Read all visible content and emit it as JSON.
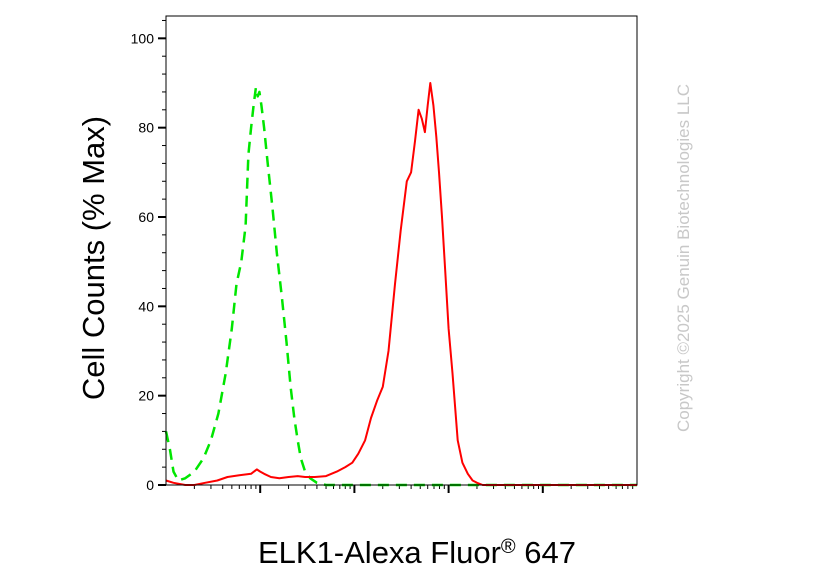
{
  "chart_data": {
    "type": "line",
    "title": "",
    "xlabel": "ELK1-Alexa Fluor",
    "xlabel_superscript": "®",
    "xlabel_suffix": " 647",
    "ylabel": "Cell Counts (% Max)",
    "x_scale": "log",
    "x_decades": [
      1,
      10,
      100,
      1000,
      10000,
      100000
    ],
    "xlim": [
      1,
      100000
    ],
    "ylim": [
      0,
      105
    ],
    "y_ticks": [
      0,
      20,
      40,
      60,
      80,
      100
    ],
    "y_tick_labels": [
      "0",
      "20",
      "40",
      "60",
      "80",
      "100"
    ],
    "grid": false,
    "legend": "none",
    "series": [
      {
        "color": "#00e600",
        "line_style": "dashed",
        "x": [
          1.0,
          1.1,
          1.2,
          1.35,
          1.6,
          2.0,
          2.5,
          3.0,
          3.6,
          4.3,
          5.0,
          5.6,
          6.3,
          7.0,
          7.5,
          8.0,
          8.5,
          9.0,
          9.4,
          9.8,
          10.3,
          11.0,
          12.0,
          13.5,
          15.0,
          17.0,
          19.0,
          21.0,
          23.0,
          25.0,
          27.0,
          30.0,
          34.0,
          40.0,
          50.0,
          70.0,
          100.0,
          300.0,
          1000.0,
          10000.0,
          100000.0
        ],
        "y": [
          12.0,
          8.0,
          3.0,
          1.0,
          1.5,
          3.0,
          6.0,
          10.0,
          16.0,
          25.0,
          35.0,
          45.0,
          50.0,
          58.0,
          74.0,
          80.0,
          85.0,
          89.0,
          87.0,
          88.0,
          85.0,
          80.0,
          72.0,
          62.0,
          52.0,
          42.0,
          32.0,
          22.0,
          15.0,
          10.0,
          6.0,
          3.0,
          1.5,
          0.5,
          0.0,
          0.0,
          0.0,
          0.0,
          0.0,
          0.0,
          0.0
        ]
      },
      {
        "color": "#ff0000",
        "line_style": "solid",
        "x": [
          1.0,
          1.2,
          1.6,
          2.0,
          2.6,
          3.5,
          4.5,
          6.0,
          8.0,
          9.2,
          10.0,
          11.0,
          13.0,
          16.0,
          20.0,
          25.0,
          30.0,
          38.0,
          50.0,
          65.0,
          80.0,
          95.0,
          110.0,
          130.0,
          150.0,
          175.0,
          200.0,
          230.0,
          270.0,
          310.0,
          360.0,
          400.0,
          440.0,
          480.0,
          520.0,
          560.0,
          600.0,
          640.0,
          690.0,
          740.0,
          790.0,
          850.0,
          920.0,
          1000.0,
          1100.0,
          1250.0,
          1400.0,
          1600.0,
          1800.0,
          2000.0,
          2300.0,
          2700.0,
          3200.0,
          4000.0,
          6000.0,
          10000.0,
          100000.0
        ],
        "y": [
          1.0,
          0.5,
          0.0,
          0.0,
          0.5,
          1.0,
          1.8,
          2.2,
          2.5,
          3.5,
          3.0,
          2.5,
          1.8,
          1.5,
          1.8,
          2.0,
          1.8,
          1.8,
          2.0,
          3.0,
          4.0,
          5.0,
          7.0,
          10.0,
          15.0,
          19.0,
          22.0,
          30.0,
          45.0,
          57.0,
          68.0,
          70.0,
          77.0,
          84.0,
          82.0,
          79.0,
          85.0,
          90.0,
          85.0,
          78.0,
          70.0,
          60.0,
          48.0,
          35.0,
          25.0,
          10.0,
          5.0,
          2.5,
          1.0,
          0.5,
          0.0,
          0.0,
          0.0,
          0.0,
          0.0,
          0.0,
          0.0
        ]
      }
    ],
    "watermark": "Copyright ©2025 Genuin Biotechnologies LLC"
  }
}
